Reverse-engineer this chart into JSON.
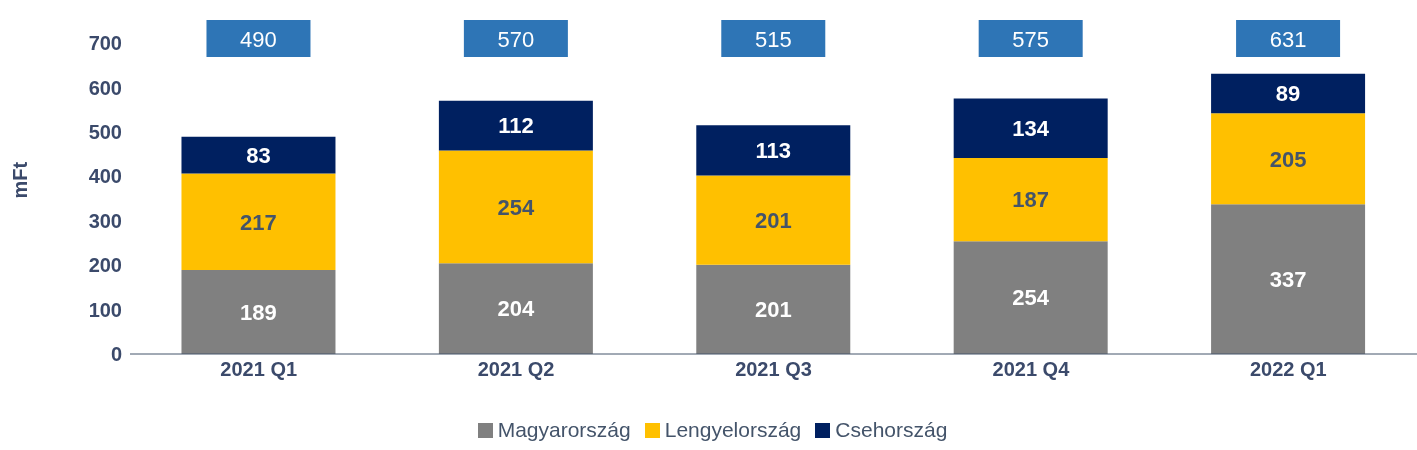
{
  "chart_data": {
    "type": "bar",
    "stacked": true,
    "ylabel": "mFt",
    "categories": [
      "2021 Q1",
      "2021 Q2",
      "2021 Q3",
      "2021 Q4",
      "2022 Q1"
    ],
    "series": [
      {
        "name": "Magyarország",
        "color": "#808080",
        "values": [
          189,
          204,
          201,
          254,
          337
        ]
      },
      {
        "name": "Lengyelország",
        "color": "#ffc000",
        "values": [
          217,
          254,
          201,
          187,
          205
        ]
      },
      {
        "name": "Csehország",
        "color": "#002060",
        "values": [
          83,
          112,
          113,
          134,
          89
        ]
      }
    ],
    "annotations": [
      "490",
      "570",
      "515",
      "575",
      "631"
    ],
    "data_labels": true,
    "ylim": [
      0,
      700
    ],
    "yticks": [
      0,
      100,
      200,
      300,
      400,
      500,
      600,
      700
    ],
    "grid": false,
    "legend": "bottom"
  }
}
